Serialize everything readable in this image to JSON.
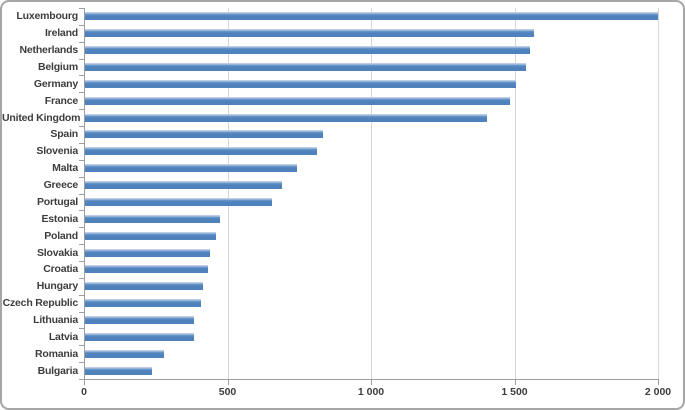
{
  "chart_data": {
    "type": "bar",
    "orientation": "horizontal",
    "title": "",
    "categories": [
      "Luxembourg",
      "Ireland",
      "Netherlands",
      "Belgium",
      "Germany",
      "France",
      "United Kingdom",
      "Spain",
      "Slovenia",
      "Malta",
      "Greece",
      "Portugal",
      "Estonia",
      "Poland",
      "Slovakia",
      "Croatia",
      "Hungary",
      "Czech Republic",
      "Lithuania",
      "Latvia",
      "Romania",
      "Bulgaria"
    ],
    "values": [
      1995,
      1565,
      1550,
      1535,
      1500,
      1480,
      1400,
      830,
      810,
      740,
      685,
      650,
      470,
      455,
      435,
      430,
      410,
      405,
      380,
      380,
      275,
      235
    ],
    "xlim": [
      0,
      2000
    ],
    "xtick_values": [
      0,
      500,
      1000,
      1500,
      2000
    ],
    "xtick_labels": [
      "0",
      "500",
      "1 000",
      "1 500",
      "2 000"
    ],
    "grid": true,
    "legend": "none",
    "colors": {
      "bar_fill": "#4f81bd",
      "bar_highlight": "#bccde5",
      "bar_mid": "#6f9aca",
      "gridline": "#d6d6d6",
      "axis": "#9e9e9e",
      "label": "#3d3d3d",
      "frame_border": "#a6a6a6",
      "background": "#ffffff"
    }
  }
}
